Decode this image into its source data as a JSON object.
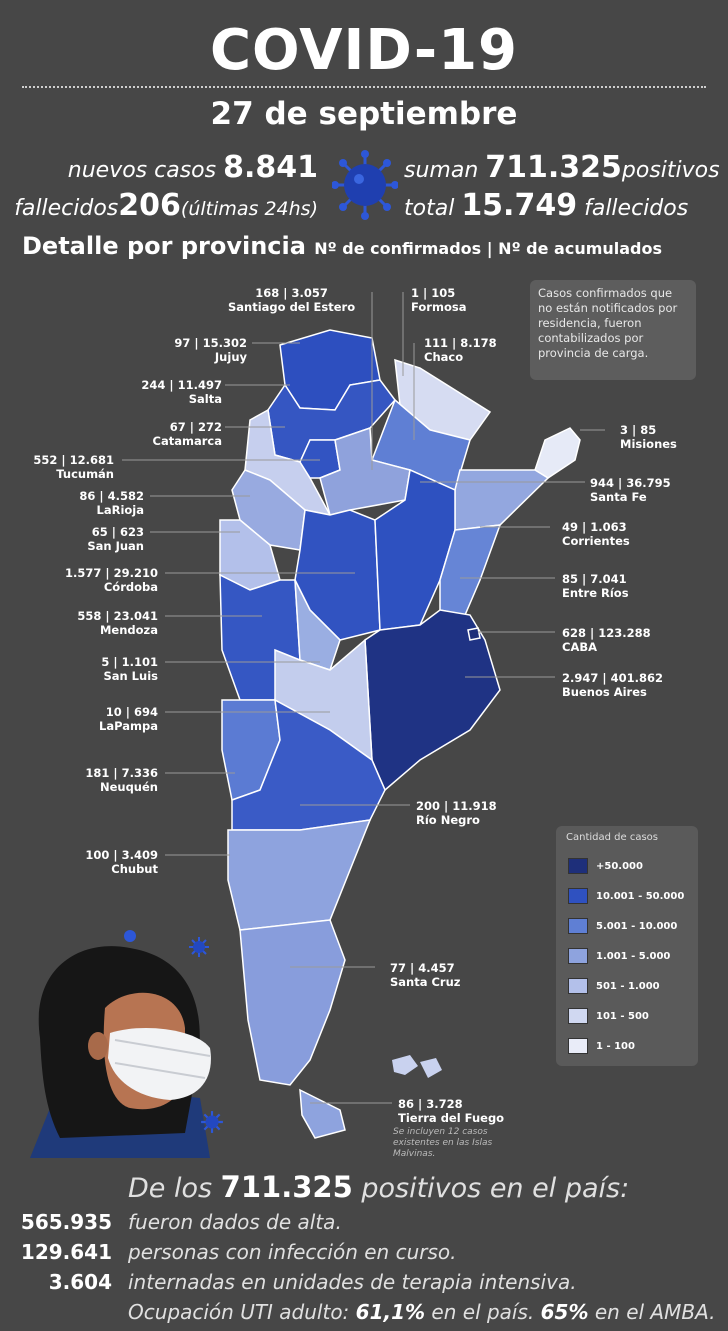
{
  "title": "COVID-19",
  "date": "27 de septiembre",
  "daily": {
    "nuevos_label": "nuevos casos",
    "nuevos_value": "8.841",
    "fallecidos_label": "fallecidos",
    "fallecidos_value": "206",
    "fallecidos_note": "(últimas 24hs)",
    "suman_label": "suman",
    "suman_value": "711.325",
    "suman_suffix": "positivos",
    "total_label": "total",
    "total_value": "15.749",
    "total_suffix": "fallecidos"
  },
  "detail": {
    "heading": "Detalle por provincia",
    "subheading": "Nº de confirmados | Nº de acumulados"
  },
  "note": "Casos confirmados que no están notificados por residencia, fueron contabilizados por provincia de carga.",
  "provinces": [
    {
      "name": "Santiago del Estero",
      "value": "168 | 3.057",
      "fill": "#8fa2dc"
    },
    {
      "name": "Formosa",
      "value": "1 | 105",
      "fill": "#d6dcf2"
    },
    {
      "name": "Jujuy",
      "value": "97 | 15.302",
      "fill": "#2d4fbf"
    },
    {
      "name": "Chaco",
      "value": "111 | 8.178",
      "fill": "#5f7fd4"
    },
    {
      "name": "Salta",
      "value": "244 | 11.497",
      "fill": "#3556c2"
    },
    {
      "name": "Catamarca",
      "value": "67 | 272",
      "fill": "#c6cfee"
    },
    {
      "name": "Misiones",
      "value": "3 | 85",
      "fill": "#e6eaf7"
    },
    {
      "name": "Tucumán",
      "value": "552 | 12.681",
      "fill": "#3254c2"
    },
    {
      "name": "Santa Fe",
      "value": "944 | 36.795",
      "fill": "#2e51c0"
    },
    {
      "name": "LaRioja",
      "value": "86 | 4.582",
      "fill": "#98aae0"
    },
    {
      "name": "Corrientes",
      "value": "49 | 1.063",
      "fill": "#93a7df"
    },
    {
      "name": "San Juan",
      "value": "65 | 623",
      "fill": "#b3c0ea"
    },
    {
      "name": "Córdoba",
      "value": "1.577 | 29.210",
      "fill": "#3153c1"
    },
    {
      "name": "Entre Ríos",
      "value": "85 | 7.041",
      "fill": "#6685d6"
    },
    {
      "name": "Mendoza",
      "value": "558 | 23.041",
      "fill": "#3557c3"
    },
    {
      "name": "CABA",
      "value": "628 | 123.288",
      "fill": "#1e2f7a"
    },
    {
      "name": "San Luis",
      "value": "5 | 1.101",
      "fill": "#9aaee2"
    },
    {
      "name": "Buenos Aires",
      "value": "2.947 | 401.862",
      "fill": "#1f3384"
    },
    {
      "name": "LaPampa",
      "value": "10 | 694",
      "fill": "#c3cded"
    },
    {
      "name": "Neuquén",
      "value": "181 | 7.336",
      "fill": "#5b7bd3"
    },
    {
      "name": "Río Negro",
      "value": "200 | 11.918",
      "fill": "#3a5bc6"
    },
    {
      "name": "Chubut",
      "value": "100 | 3.409",
      "fill": "#8ea3de"
    },
    {
      "name": "Santa Cruz",
      "value": "77 | 4.457",
      "fill": "#889ddc"
    },
    {
      "name": "Tierra del Fuego",
      "value": "86 | 3.728",
      "fill": "#8ea3de"
    }
  ],
  "islands_note": "Se incluyen 12 casos existentes en las Islas Malvinas.",
  "legend": {
    "title": "Cantidad de casos",
    "items": [
      {
        "label": "+50.000",
        "color": "#1e2f7a"
      },
      {
        "label": "10.001 - 50.000",
        "color": "#2f51c0"
      },
      {
        "label": "5.001 - 10.000",
        "color": "#5f7fd4"
      },
      {
        "label": "1.001 - 5.000",
        "color": "#8ea3de"
      },
      {
        "label": "501 - 1.000",
        "color": "#b3c0ea"
      },
      {
        "label": "101 - 500",
        "color": "#d0d8f1"
      },
      {
        "label": "1 - 100",
        "color": "#e9ecf8"
      }
    ]
  },
  "summary": {
    "intro_pre": "De los",
    "intro_value": "711.325",
    "intro_post": "positivos en el país:",
    "rows": [
      {
        "num": "565.935",
        "text": "fueron dados de alta."
      },
      {
        "num": "129.641",
        "text": "personas con infección en curso."
      },
      {
        "num": "3.604",
        "text": "internadas en unidades de terapia intensiva."
      }
    ],
    "uti_pre": "Ocupación UTI adulto:",
    "uti_country": "61,1%",
    "uti_mid": "en el país.",
    "uti_amba": "65%",
    "uti_post": "en el AMBA."
  }
}
